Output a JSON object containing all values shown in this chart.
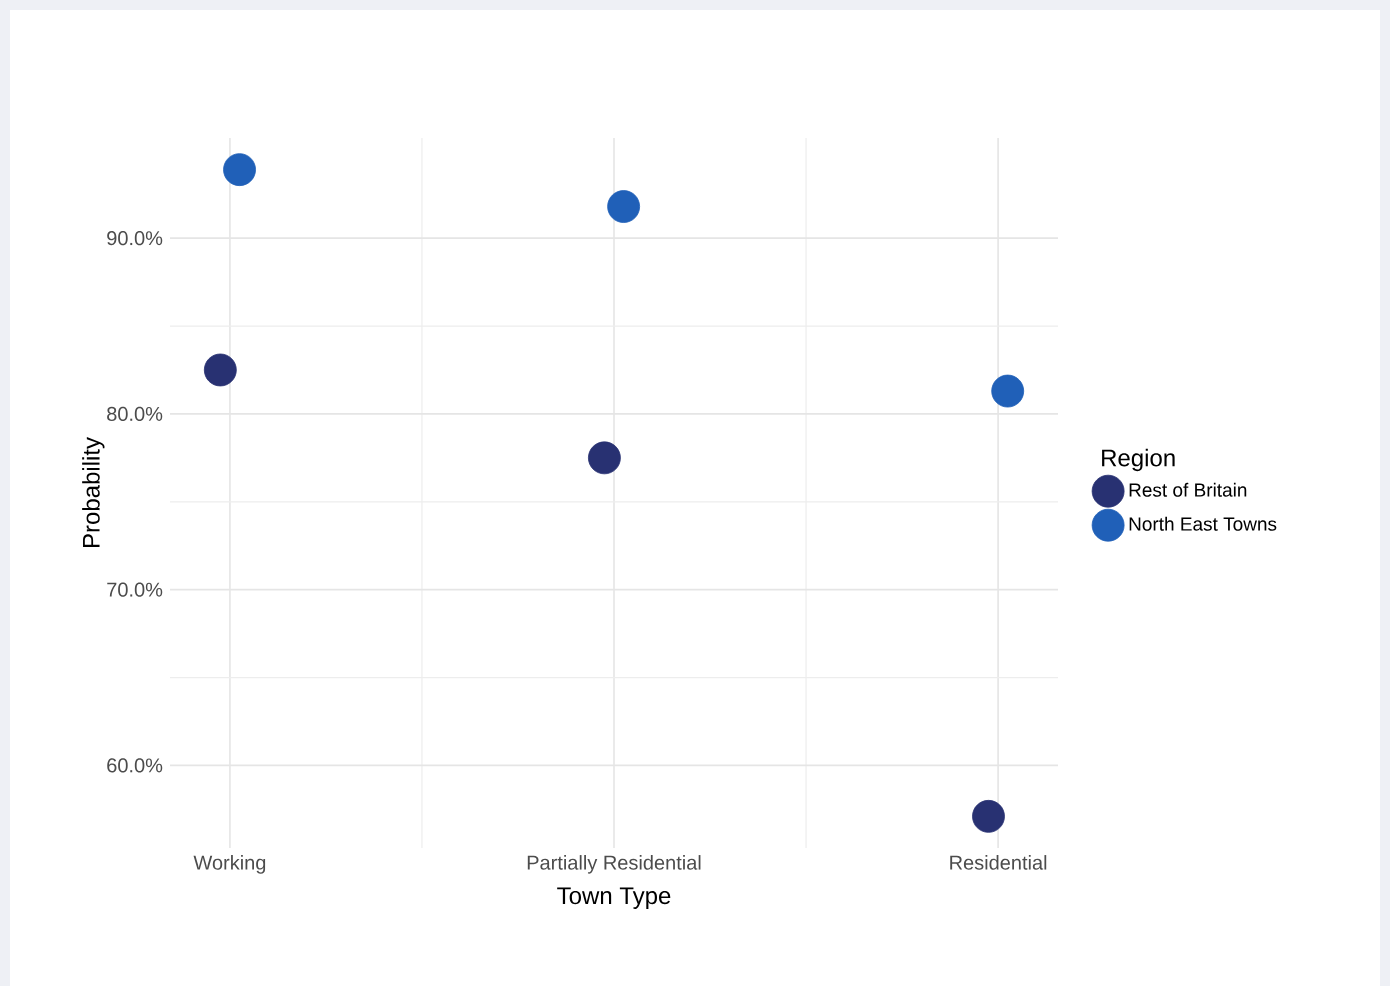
{
  "chart_data": {
    "type": "scatter",
    "xlabel": "Town Type",
    "ylabel": "Probability",
    "legend_title": "Region",
    "legend": "right",
    "grid": true,
    "marker": "circle",
    "categories": [
      "Working",
      "Partially Residential",
      "Residential"
    ],
    "ylim": [
      55.3,
      95.7
    ],
    "yticks": [
      {
        "value": 60,
        "label": "60.0%"
      },
      {
        "value": 70,
        "label": "70.0%"
      },
      {
        "value": 80,
        "label": "80.0%"
      },
      {
        "value": 90,
        "label": "90.0%"
      }
    ],
    "series": [
      {
        "name": "Rest of Britain",
        "color": "#283172",
        "values": [
          82.5,
          77.5,
          57.1
        ]
      },
      {
        "name": "North East Towns",
        "color": "#2060b8",
        "values": [
          93.9,
          91.8,
          81.3
        ]
      }
    ]
  }
}
